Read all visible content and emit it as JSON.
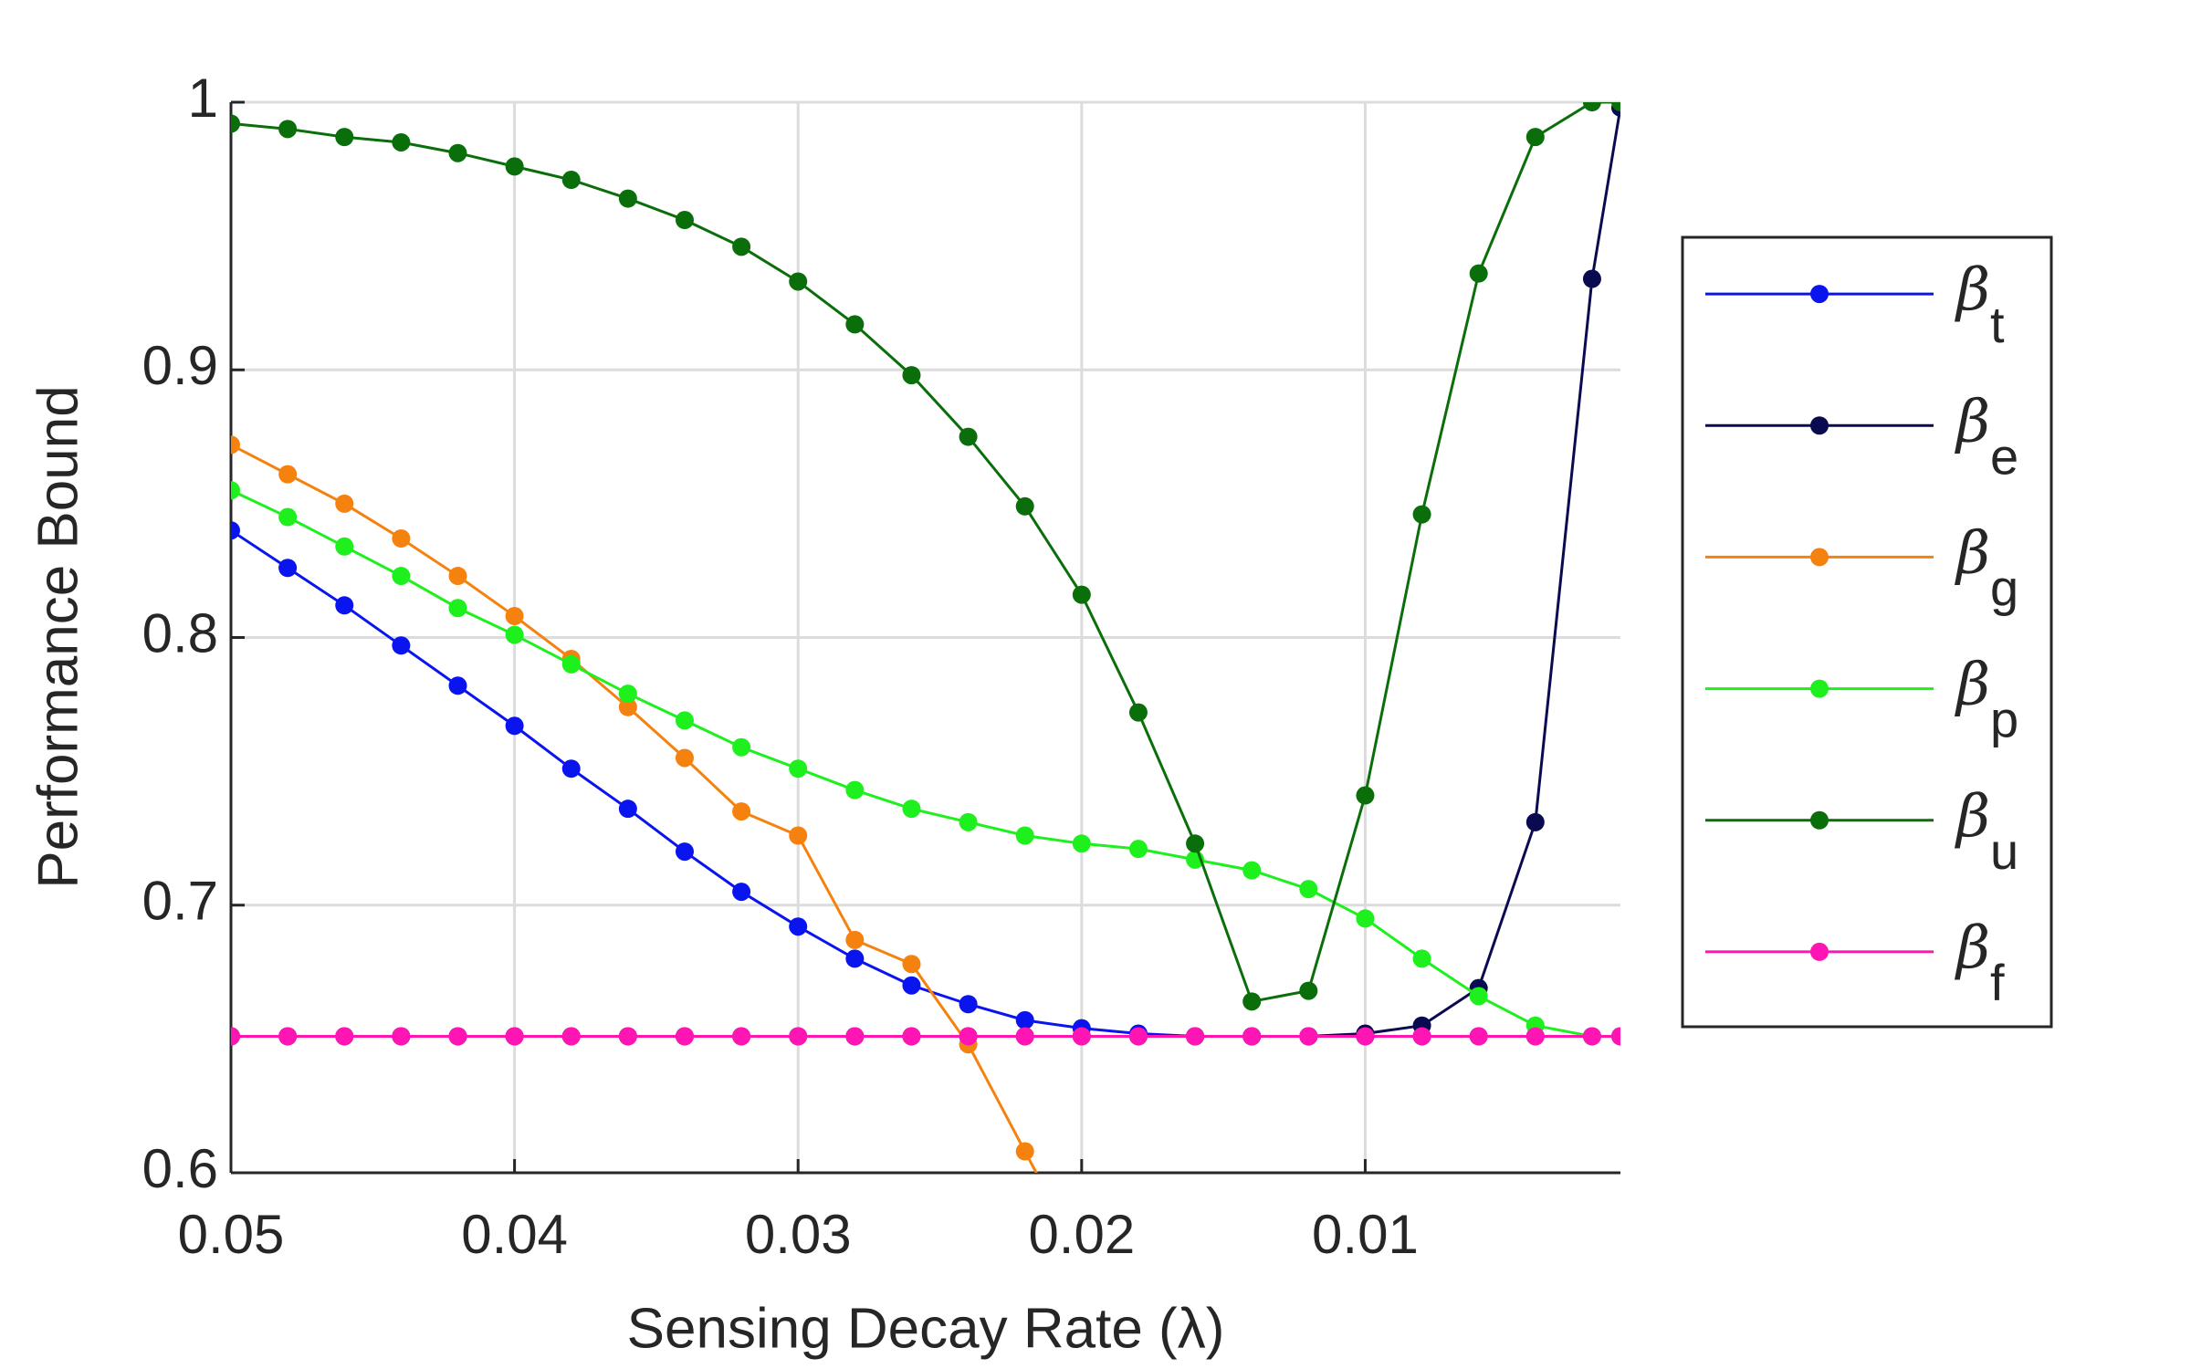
{
  "chart_data": {
    "type": "line",
    "xlabel": "Sensing Decay Rate (λ)",
    "ylabel": "Performance Bound",
    "x": [
      0.05,
      0.048,
      0.046,
      0.044,
      0.042,
      0.04,
      0.038,
      0.036,
      0.034,
      0.032,
      0.03,
      0.028,
      0.026,
      0.024,
      0.022,
      0.02,
      0.018,
      0.016,
      0.014,
      0.012,
      0.01,
      0.008,
      0.006,
      0.004,
      0.002,
      0.001
    ],
    "series": [
      {
        "name": "βt",
        "color": "#0a14ee",
        "values": [
          0.84,
          0.826,
          0.812,
          0.797,
          0.782,
          0.767,
          0.751,
          0.736,
          0.72,
          0.705,
          0.692,
          0.68,
          0.67,
          0.663,
          0.657,
          0.654,
          0.652,
          0.651,
          0.651,
          0.651,
          0.651,
          0.651,
          0.651,
          0.651,
          0.651,
          0.651
        ]
      },
      {
        "name": "βe",
        "color": "#0a0a50",
        "values": [
          0.651,
          0.651,
          0.651,
          0.651,
          0.651,
          0.651,
          0.651,
          0.651,
          0.651,
          0.651,
          0.651,
          0.651,
          0.651,
          0.651,
          0.651,
          0.651,
          0.651,
          0.651,
          0.651,
          0.651,
          0.652,
          0.655,
          0.669,
          0.731,
          0.934,
          0.998
        ]
      },
      {
        "name": "βg",
        "color": "#f5820f",
        "values": [
          0.872,
          0.861,
          0.85,
          0.837,
          0.823,
          0.808,
          0.792,
          0.774,
          0.755,
          0.735,
          0.726,
          0.687,
          0.678,
          0.648,
          0.608,
          0.568,
          null,
          null,
          null,
          null,
          null,
          null,
          null,
          null,
          null,
          null
        ]
      },
      {
        "name": "βp",
        "color": "#1ef01e",
        "values": [
          0.855,
          0.845,
          0.834,
          0.823,
          0.811,
          0.801,
          0.79,
          0.779,
          0.769,
          0.759,
          0.751,
          0.743,
          0.736,
          0.731,
          0.726,
          0.723,
          0.721,
          0.717,
          0.713,
          0.706,
          0.695,
          0.68,
          0.666,
          0.655,
          0.651,
          0.651
        ]
      },
      {
        "name": "βu",
        "color": "#0a6e0a",
        "values": [
          0.992,
          0.99,
          0.987,
          0.985,
          0.981,
          0.976,
          0.971,
          0.964,
          0.956,
          0.946,
          0.933,
          0.917,
          0.898,
          0.875,
          0.849,
          0.816,
          0.772,
          0.723,
          0.664,
          0.668,
          0.741,
          0.846,
          0.936,
          0.987,
          1.0,
          1.0
        ]
      },
      {
        "name": "βf",
        "color": "#ff14b4",
        "values": [
          0.651,
          0.651,
          0.651,
          0.651,
          0.651,
          0.651,
          0.651,
          0.651,
          0.651,
          0.651,
          0.651,
          0.651,
          0.651,
          0.651,
          0.651,
          0.651,
          0.651,
          0.651,
          0.651,
          0.651,
          0.651,
          0.651,
          0.651,
          0.651,
          0.651,
          0.651
        ]
      }
    ],
    "xlim": [
      0.05,
      0.001
    ],
    "xticks": [
      0.05,
      0.04,
      0.03,
      0.02,
      0.01
    ],
    "ylim": [
      0.6,
      1
    ],
    "yticks": [
      0.6,
      0.7,
      0.8,
      0.9,
      1
    ],
    "grid": true,
    "legend": "outside right"
  }
}
